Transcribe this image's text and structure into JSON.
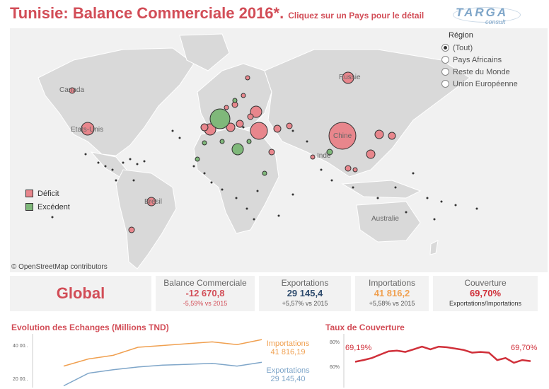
{
  "header": {
    "title": "Tunisie: Balance Commerciale 2016*.",
    "subtitle": "Cliquez sur un Pays pour le détail"
  },
  "logo": {
    "main": "TARGA",
    "sub": "consult"
  },
  "map": {
    "credit": "© OpenStreetMap contributors",
    "country_labels": [
      "Canada",
      "Etats-Unis",
      "Brésil",
      "Russie",
      "Chine",
      "Inde",
      "Australie"
    ],
    "legend": [
      {
        "label": "Déficit",
        "color": "#e8868c"
      },
      {
        "label": "Excédent",
        "color": "#7fb87a"
      }
    ]
  },
  "region_filter": {
    "title": "Région",
    "options": [
      "(Tout)",
      "Pays Africains",
      "Reste du Monde",
      "Union Européenne"
    ],
    "selected": "(Tout)"
  },
  "kpis": {
    "global": "Global",
    "balance": {
      "label": "Balance Commerciale",
      "value": "-12 670,8",
      "sub": "-5,59% vs 2015"
    },
    "exports": {
      "label": "Exportations",
      "value": "29 145,4",
      "sub": "+5,57% vs 2015"
    },
    "imports": {
      "label": "Importations",
      "value": "41 816,2",
      "sub": "+5,58% vs 2015"
    },
    "coverage": {
      "label": "Couverture",
      "value": "69,70%",
      "sub": "Exportations/Importations"
    }
  },
  "colors": {
    "accent": "#d24d57",
    "deficit": "#e8868c",
    "surplus": "#7fb87a",
    "imports": "#f0a050",
    "exports": "#7fa6c9",
    "coverage": "#d0303a",
    "balance_value": "#d24d57",
    "exports_value": "#2f4c6e",
    "imports_value": "#f0a050"
  },
  "chart_data": [
    {
      "type": "line",
      "title": "Evolution des Echanges (Millions TND)",
      "y_ticks": [
        "40 00..",
        "20 00.."
      ],
      "ylim": [
        15000,
        45000
      ],
      "series": [
        {
          "name": "Importations",
          "end_label": "41 816,19",
          "values": [
            27000,
            31000,
            33000,
            37500,
            38500,
            39500,
            40500,
            39000,
            41816
          ]
        },
        {
          "name": "Exportations",
          "end_label": "29 145,40",
          "values": [
            16000,
            23000,
            25000,
            26500,
            27500,
            28000,
            28500,
            27000,
            29145
          ]
        }
      ]
    },
    {
      "type": "line",
      "title": "Taux de Couverture",
      "y_ticks": [
        "80%",
        "60%"
      ],
      "ylim": [
        50,
        90
      ],
      "start_label": "69,19%",
      "end_label": "69,70%",
      "series": [
        {
          "values": [
            69.2,
            70.5,
            72.0,
            74.5,
            77.0,
            77.5,
            76.5,
            78.5,
            80.5,
            78.5,
            80.5,
            80.0,
            79.0,
            78.0,
            76.0,
            76.5,
            76.0,
            70.5,
            72.0,
            68.5,
            70.5,
            69.7
          ]
        }
      ]
    }
  ]
}
